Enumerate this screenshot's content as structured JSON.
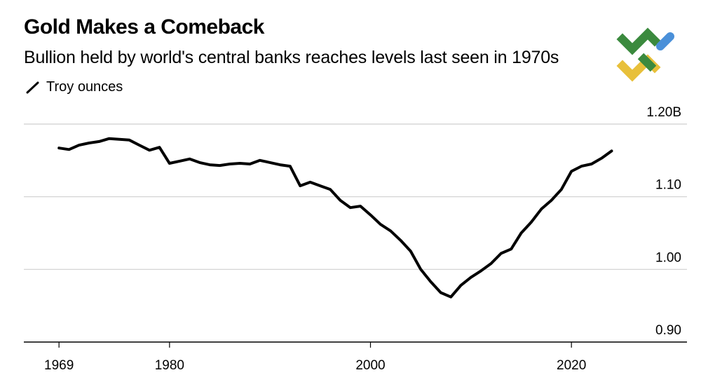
{
  "chart_data": {
    "type": "line",
    "title": "Gold Makes a Comeback",
    "subtitle": "Bullion held by world's central banks reaches levels last seen in 1970s",
    "legend": "Troy ounces",
    "line_color": "#000000",
    "ylim": [
      0.9,
      1.2
    ],
    "xlim": [
      1965.5,
      2031.5
    ],
    "y_ticks": [
      {
        "value": 1.2,
        "label": "1.20B"
      },
      {
        "value": 1.1,
        "label": "1.10"
      },
      {
        "value": 1.0,
        "label": "1.00"
      },
      {
        "value": 0.9,
        "label": "0.90"
      }
    ],
    "x_ticks": [
      {
        "value": 1969,
        "label": "1969"
      },
      {
        "value": 1980,
        "label": "1980"
      },
      {
        "value": 2000,
        "label": "2000"
      },
      {
        "value": 2020,
        "label": "2020"
      }
    ],
    "series": [
      {
        "name": "Troy ounces",
        "x": [
          1969,
          1970,
          1971,
          1972,
          1973,
          1974,
          1975,
          1976,
          1977,
          1978,
          1979,
          1980,
          1981,
          1982,
          1983,
          1984,
          1985,
          1986,
          1987,
          1988,
          1989,
          1990,
          1991,
          1992,
          1993,
          1994,
          1995,
          1996,
          1997,
          1998,
          1999,
          2000,
          2001,
          2002,
          2003,
          2004,
          2005,
          2006,
          2007,
          2008,
          2009,
          2010,
          2011,
          2012,
          2013,
          2014,
          2015,
          2016,
          2017,
          2018,
          2019,
          2020,
          2021,
          2022,
          2023,
          2024
        ],
        "values": [
          1.167,
          1.165,
          1.171,
          1.174,
          1.176,
          1.18,
          1.179,
          1.178,
          1.171,
          1.164,
          1.168,
          1.146,
          1.149,
          1.152,
          1.147,
          1.144,
          1.143,
          1.145,
          1.146,
          1.145,
          1.15,
          1.147,
          1.144,
          1.142,
          1.115,
          1.12,
          1.115,
          1.11,
          1.095,
          1.085,
          1.087,
          1.075,
          1.062,
          1.053,
          1.04,
          1.025,
          1.0,
          0.983,
          0.968,
          0.962,
          0.978,
          0.989,
          0.998,
          1.008,
          1.022,
          1.028,
          1.05,
          1.065,
          1.083,
          1.095,
          1.11,
          1.135,
          1.142,
          1.145,
          1.153,
          1.163
        ]
      }
    ]
  }
}
